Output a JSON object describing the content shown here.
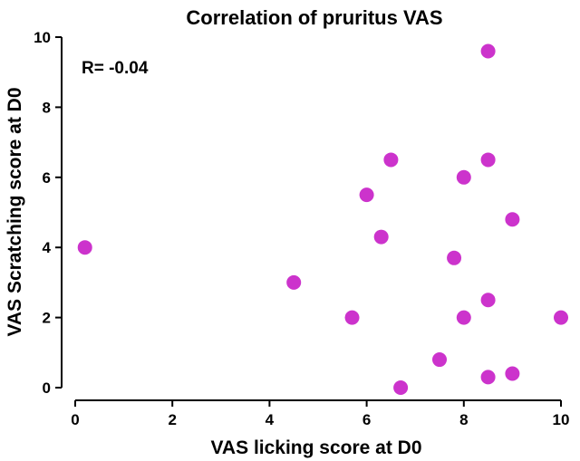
{
  "chart_data": {
    "type": "scatter",
    "title": "Correlation of pruritus VAS",
    "xlabel": "VAS licking score at D0",
    "ylabel": "VAS Scratching score at D0",
    "xlim": [
      0,
      10
    ],
    "ylim": [
      0,
      10
    ],
    "xticks": [
      "0",
      "2",
      "4",
      "6",
      "8",
      "10"
    ],
    "yticks": [
      "0",
      "2",
      "4",
      "6",
      "8",
      "10"
    ],
    "annotation": "R= -0.04",
    "grid": false,
    "marker_color": "#cc33cc",
    "points": [
      {
        "x": 0.2,
        "y": 4.0
      },
      {
        "x": 4.5,
        "y": 3.0
      },
      {
        "x": 5.7,
        "y": 2.0
      },
      {
        "x": 6.0,
        "y": 5.5
      },
      {
        "x": 6.3,
        "y": 4.3
      },
      {
        "x": 6.5,
        "y": 6.5
      },
      {
        "x": 6.7,
        "y": 0.0
      },
      {
        "x": 7.5,
        "y": 0.8
      },
      {
        "x": 7.8,
        "y": 3.7
      },
      {
        "x": 8.0,
        "y": 6.0
      },
      {
        "x": 8.0,
        "y": 2.0
      },
      {
        "x": 8.5,
        "y": 9.6
      },
      {
        "x": 8.5,
        "y": 6.5
      },
      {
        "x": 8.5,
        "y": 2.5
      },
      {
        "x": 8.5,
        "y": 0.3
      },
      {
        "x": 9.0,
        "y": 4.8
      },
      {
        "x": 9.0,
        "y": 0.4
      },
      {
        "x": 10.0,
        "y": 2.0
      }
    ]
  }
}
